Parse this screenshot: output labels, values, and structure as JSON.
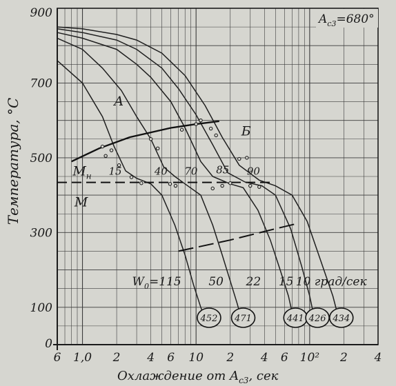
{
  "chart_data": {
    "type": "line",
    "title": "",
    "xlabel": "Охлаждение от A",
    "xlabel_sub": "c3",
    "xlabel_tail": ", сек",
    "ylabel": "Температура, °C",
    "x_scale": "log",
    "xlim": [
      0.6,
      400
    ],
    "ylim": [
      0,
      900
    ],
    "y_ticks": [
      {
        "v": 0,
        "label": "0"
      },
      {
        "v": 100,
        "label": "100"
      },
      {
        "v": 300,
        "label": "300"
      },
      {
        "v": 500,
        "label": "500"
      },
      {
        "v": 700,
        "label": "700"
      },
      {
        "v": 900,
        "label": "900"
      }
    ],
    "x_ticks": [
      {
        "v": 0.6,
        "label": "6"
      },
      {
        "v": 1.0,
        "label": "1,0"
      },
      {
        "v": 2,
        "label": "2"
      },
      {
        "v": 4,
        "label": "4"
      },
      {
        "v": 6,
        "label": "6"
      },
      {
        "v": 10,
        "label": "10"
      },
      {
        "v": 20,
        "label": "2"
      },
      {
        "v": 40,
        "label": "4"
      },
      {
        "v": 60,
        "label": "6"
      },
      {
        "v": 100,
        "label": "10²"
      },
      {
        "v": 200,
        "label": "2"
      },
      {
        "v": 400,
        "label": "4"
      }
    ],
    "ac3_label": "A",
    "ac3_sub": "c3",
    "ac3_value": "=680°",
    "region_labels": [
      {
        "text": "A",
        "x": 1.9,
        "y": 640
      },
      {
        "text": "Б",
        "x": 25,
        "y": 560
      },
      {
        "text": "M",
        "x": 0.85,
        "y": 370
      },
      {
        "text": "M",
        "x": 0.82,
        "y": 453,
        "sub": "н"
      }
    ],
    "martensite_start": 434,
    "ferrite_start_curve": [
      [
        0.8,
        490
      ],
      [
        1.4,
        525
      ],
      [
        2.6,
        555
      ],
      [
        6,
        580
      ],
      [
        10,
        590
      ],
      [
        16,
        598
      ]
    ],
    "bainite_end_dashed": [
      [
        7,
        250
      ],
      [
        20,
        280
      ],
      [
        50,
        310
      ],
      [
        80,
        325
      ]
    ],
    "start_points": [
      [
        1.5,
        530
      ],
      [
        1.8,
        520
      ],
      [
        4,
        550
      ],
      [
        4.6,
        525
      ],
      [
        7.5,
        575
      ],
      [
        10,
        590
      ],
      [
        11,
        600
      ],
      [
        13.5,
        578
      ],
      [
        15,
        560
      ],
      [
        24,
        497
      ],
      [
        28,
        500
      ]
    ],
    "end_points": [
      [
        1.6,
        505
      ],
      [
        2.1,
        480
      ],
      [
        2.7,
        448
      ],
      [
        3.3,
        432
      ],
      [
        5.9,
        430
      ],
      [
        6.6,
        425
      ],
      [
        14,
        418
      ],
      [
        17,
        425
      ],
      [
        20,
        432
      ],
      [
        30,
        425
      ],
      [
        36,
        422
      ]
    ],
    "series": [
      {
        "values": [
          [
            0.6,
            760
          ],
          [
            1.0,
            700
          ],
          [
            1.5,
            610
          ],
          [
            1.9,
            530
          ],
          [
            2.4,
            465
          ],
          [
            3.0,
            445
          ],
          [
            4.0,
            430
          ],
          [
            5.0,
            400
          ],
          [
            6.5,
            320
          ],
          [
            8.0,
            240
          ],
          [
            9.5,
            160
          ],
          [
            11,
            100
          ],
          [
            12,
            70
          ]
        ],
        "end_label": "452",
        "end_x": 13,
        "rate": "115",
        "rate_prefix": "W",
        "rate_sub": "0",
        "rate_eq": "=",
        "rate_x": 4.5
      },
      {
        "values": [
          [
            0.6,
            820
          ],
          [
            1.0,
            790
          ],
          [
            1.5,
            740
          ],
          [
            2.2,
            680
          ],
          [
            3.0,
            610
          ],
          [
            4.0,
            550
          ],
          [
            5.2,
            475
          ],
          [
            6.5,
            450
          ],
          [
            8.0,
            430
          ],
          [
            11,
            400
          ],
          [
            14,
            320
          ],
          [
            17,
            240
          ],
          [
            20,
            170
          ],
          [
            23,
            110
          ],
          [
            25,
            70
          ]
        ],
        "end_label": "471",
        "end_x": 26,
        "rate": "50",
        "rate_x": 15
      },
      {
        "values": [
          [
            0.6,
            835
          ],
          [
            1.0,
            820
          ],
          [
            2.0,
            790
          ],
          [
            3.0,
            750
          ],
          [
            4.0,
            715
          ],
          [
            6.0,
            650
          ],
          [
            8.0,
            580
          ],
          [
            11,
            490
          ],
          [
            14,
            450
          ],
          [
            20,
            430
          ],
          [
            26,
            420
          ],
          [
            35,
            360
          ],
          [
            45,
            280
          ],
          [
            55,
            200
          ],
          [
            65,
            130
          ],
          [
            72,
            70
          ]
        ],
        "end_label": "441",
        "end_x": 75,
        "rate": "22",
        "rate_x": 32
      },
      {
        "values": [
          [
            0.6,
            845
          ],
          [
            1.0,
            835
          ],
          [
            2.0,
            815
          ],
          [
            3.0,
            790
          ],
          [
            5.0,
            740
          ],
          [
            7.0,
            685
          ],
          [
            10,
            615
          ],
          [
            14,
            535
          ],
          [
            19,
            460
          ],
          [
            27,
            435
          ],
          [
            38,
            425
          ],
          [
            50,
            400
          ],
          [
            68,
            310
          ],
          [
            85,
            210
          ],
          [
            100,
            130
          ],
          [
            110,
            70
          ]
        ],
        "end_label": "426",
        "end_x": 117,
        "rate": "15",
        "rate_x": 62
      },
      {
        "values": [
          [
            0.6,
            850
          ],
          [
            1.0,
            845
          ],
          [
            2.0,
            830
          ],
          [
            3.0,
            815
          ],
          [
            5.0,
            780
          ],
          [
            8.0,
            720
          ],
          [
            12,
            640
          ],
          [
            17,
            555
          ],
          [
            24,
            480
          ],
          [
            36,
            440
          ],
          [
            50,
            425
          ],
          [
            70,
            400
          ],
          [
            95,
            330
          ],
          [
            130,
            210
          ],
          [
            160,
            130
          ],
          [
            180,
            70
          ]
        ],
        "end_label": "434",
        "end_x": 190,
        "rate": "10 град/сек",
        "rate_x": 155
      }
    ]
  }
}
